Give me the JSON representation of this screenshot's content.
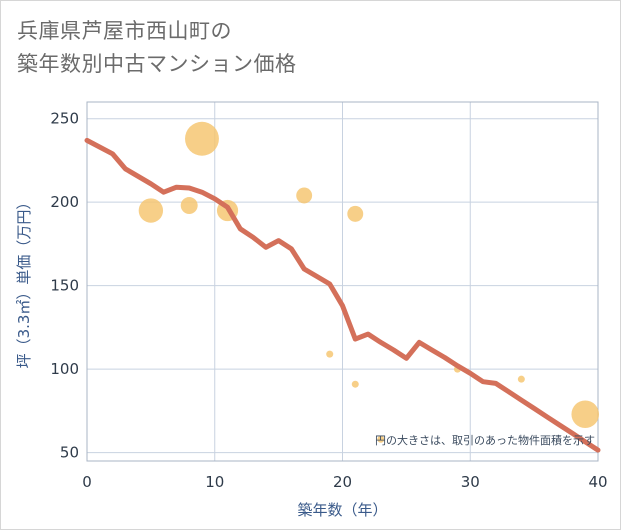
{
  "title_lines": [
    "兵庫県芦屋市西山町の",
    "築年数別中古マンション価格"
  ],
  "colors": {
    "line": "#d4705a",
    "bubble": "#f5c46e",
    "grid": "#c8d2e0",
    "plot_border": "#a9b4c4"
  },
  "chart_data": {
    "type": "scatter",
    "title": "兵庫県芦屋市西山町の築年数別中古マンション価格",
    "xlabel": "築年数（年）",
    "ylabel": "坪（3.3㎡）単価（万円）",
    "xlim": [
      0,
      40
    ],
    "ylim": [
      45,
      260
    ],
    "x_ticks": [
      0,
      10,
      20,
      30,
      40
    ],
    "y_ticks": [
      50,
      100,
      150,
      200,
      250
    ],
    "grid": true,
    "annotation": "円の大きさは、取引のあった物件面積を示す",
    "bubbles": [
      {
        "x": 5,
        "y": 195,
        "size": 2.3
      },
      {
        "x": 8,
        "y": 198,
        "size": 1.6
      },
      {
        "x": 9,
        "y": 238,
        "size": 3.2
      },
      {
        "x": 11,
        "y": 195,
        "size": 2.0
      },
      {
        "x": 17,
        "y": 204,
        "size": 1.5
      },
      {
        "x": 19,
        "y": 109,
        "size": 0.6
      },
      {
        "x": 21,
        "y": 193,
        "size": 1.5
      },
      {
        "x": 21,
        "y": 91,
        "size": 0.55
      },
      {
        "x": 23,
        "y": 58,
        "size": 0.5
      },
      {
        "x": 29,
        "y": 100,
        "size": 0.5
      },
      {
        "x": 34,
        "y": 94,
        "size": 0.55
      },
      {
        "x": 39,
        "y": 73,
        "size": 2.6
      }
    ],
    "trend": {
      "x": [
        0,
        2,
        3,
        5,
        6,
        7,
        8,
        9,
        10,
        11,
        12,
        13,
        14,
        15,
        16,
        17,
        18,
        19,
        20,
        21,
        22,
        23,
        24,
        25,
        26,
        27,
        28,
        29,
        30,
        31,
        32,
        33,
        34,
        35,
        36,
        37,
        38,
        39,
        40
      ],
      "y": [
        237,
        229,
        220,
        211,
        206,
        209,
        208.5,
        206,
        202,
        197,
        184,
        179,
        173,
        177,
        172,
        160,
        155.5,
        151,
        138,
        118,
        121,
        116,
        111.5,
        106.5,
        116,
        111.5,
        107,
        102,
        97.5,
        92.5,
        91.5,
        86.5,
        81.5,
        76.5,
        71.5,
        66.5,
        61.5,
        56.5,
        51.5
      ]
    }
  }
}
